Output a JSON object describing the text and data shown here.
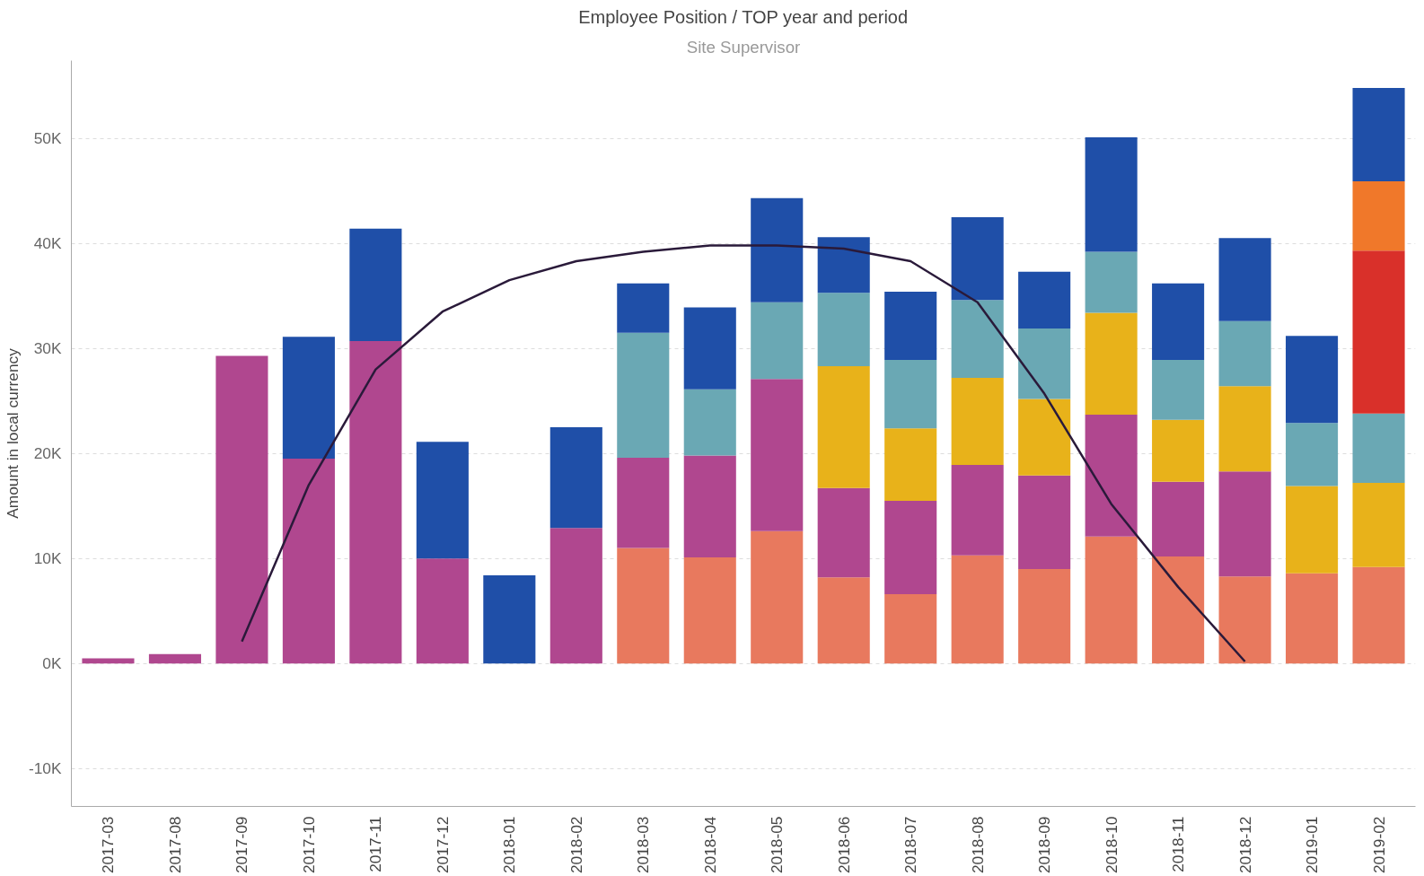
{
  "chart_data": {
    "type": "bar",
    "stacked": true,
    "title": "Employee Position / TOP year and period",
    "subtitle": "Site Supervisor",
    "ylabel": "Amount in local currency",
    "categories": [
      "2017-03",
      "2017-08",
      "2017-09",
      "2017-10",
      "2017-11",
      "2017-12",
      "2018-01",
      "2018-02",
      "2018-03",
      "2018-04",
      "2018-05",
      "2018-06",
      "2018-07",
      "2018-08",
      "2018-09",
      "2018-10",
      "2018-11",
      "2018-12",
      "2019-01",
      "2019-02"
    ],
    "series": [
      {
        "color": "#e8795e",
        "values": [
          null,
          null,
          null,
          null,
          null,
          null,
          null,
          null,
          11000,
          10100,
          12600,
          8200,
          6600,
          10300,
          9000,
          12100,
          10200,
          8300,
          8600,
          9200
        ]
      },
      {
        "color": "#b0478f",
        "values": [
          500,
          900,
          29300,
          19500,
          30700,
          10000,
          null,
          12900,
          8600,
          9700,
          14500,
          8500,
          8900,
          8600,
          8900,
          11600,
          7100,
          10000,
          null,
          null
        ]
      },
      {
        "color": "#e8b21a",
        "values": [
          null,
          null,
          null,
          null,
          null,
          null,
          null,
          null,
          null,
          null,
          null,
          11600,
          6900,
          8300,
          7300,
          9700,
          5900,
          8100,
          8300,
          8000
        ]
      },
      {
        "color": "#6aa8b4",
        "values": [
          null,
          null,
          null,
          null,
          null,
          null,
          null,
          null,
          11900,
          6300,
          7300,
          7000,
          6500,
          7400,
          6700,
          5800,
          5700,
          6200,
          6000,
          6600
        ]
      },
      {
        "color": "#d9302a",
        "values": [
          null,
          null,
          null,
          null,
          null,
          null,
          null,
          null,
          null,
          null,
          null,
          null,
          null,
          null,
          null,
          null,
          null,
          null,
          null,
          15500
        ]
      },
      {
        "color": "#f0782a",
        "values": [
          null,
          null,
          null,
          null,
          null,
          null,
          null,
          null,
          null,
          null,
          null,
          null,
          null,
          null,
          null,
          null,
          null,
          null,
          null,
          6600
        ]
      },
      {
        "color": "#1f4fa8",
        "values": [
          null,
          null,
          null,
          11600,
          10700,
          11100,
          8400,
          9600,
          4700,
          7800,
          9900,
          5300,
          6500,
          7900,
          5400,
          10900,
          7300,
          7900,
          8300,
          8900
        ]
      },
      {
        "type": "line",
        "color": "#2a1a3a",
        "values": [
          null,
          null,
          2100,
          17000,
          28000,
          33500,
          36500,
          38300,
          39200,
          39800,
          39800,
          39500,
          38300,
          34400,
          25700,
          15200,
          7300,
          200,
          null,
          null
        ]
      }
    ],
    "ylim": [
      -13600,
      57400
    ],
    "yticks": [
      {
        "value": -10000,
        "label": "-10K"
      },
      {
        "value": 0,
        "label": "0K"
      },
      {
        "value": 10000,
        "label": "10K"
      },
      {
        "value": 20000,
        "label": "20K"
      },
      {
        "value": 30000,
        "label": "30K"
      },
      {
        "value": 40000,
        "label": "40K"
      },
      {
        "value": 50000,
        "label": "50K"
      }
    ],
    "grid": "y"
  }
}
